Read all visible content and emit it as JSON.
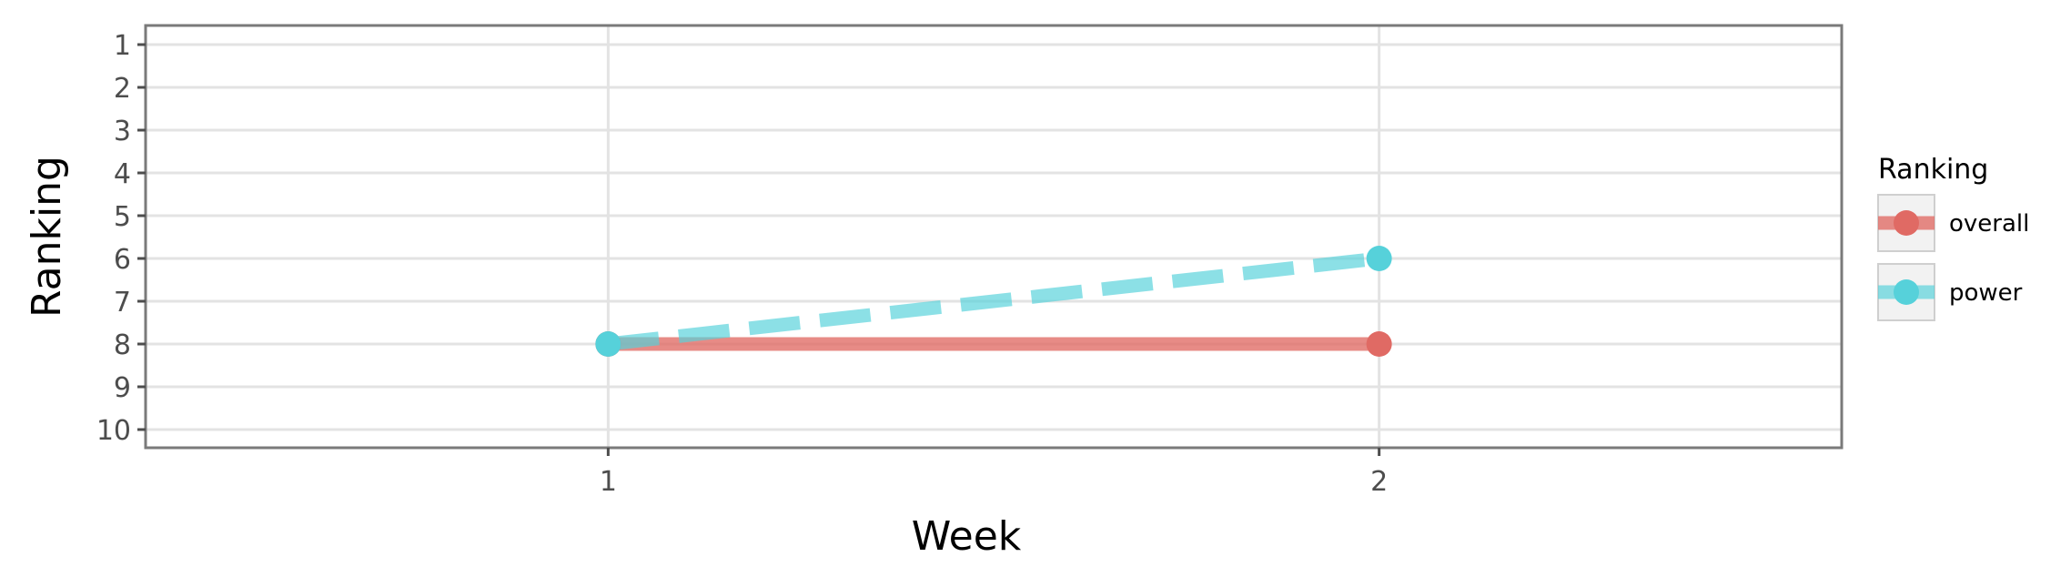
{
  "chart_data": {
    "type": "line",
    "title": "",
    "xlabel": "Week",
    "ylabel": "Ranking",
    "x": [
      1,
      2
    ],
    "x_ticks": [
      "1",
      "2"
    ],
    "xlim": [
      0.4,
      2.6
    ],
    "y_ticks": [
      "1",
      "2",
      "3",
      "4",
      "5",
      "6",
      "7",
      "8",
      "9",
      "10"
    ],
    "ylim": [
      1,
      10
    ],
    "y_reversed": true,
    "grid": true,
    "legend": {
      "title": "Ranking",
      "position": "right"
    },
    "series": [
      {
        "name": "overall",
        "values": [
          8,
          8
        ],
        "color": "#e06a64",
        "line_style": "solid"
      },
      {
        "name": "power",
        "values": [
          8,
          6
        ],
        "color": "#56d1da",
        "line_style": "dashed"
      }
    ]
  }
}
